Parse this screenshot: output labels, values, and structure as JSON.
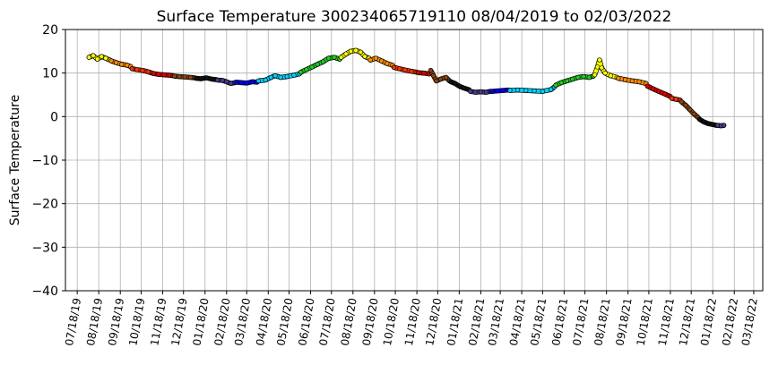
{
  "chart_data": {
    "type": "scatter",
    "title": "Surface Temperature 300234065719110  08/04/2019 to 02/03/2022",
    "xlabel": "",
    "ylabel": "Surface Temperature",
    "ylim": [
      -40,
      20
    ],
    "xlim": [
      "2019-07-01",
      "2022-03-31"
    ],
    "yticks": [
      20,
      10,
      0,
      -10,
      -20,
      -30,
      -40
    ],
    "ytick_labels": [
      "20",
      "10",
      "0",
      "−10",
      "−20",
      "−30",
      "−40"
    ],
    "xtick_labels": [
      "07/18/19",
      "08/18/19",
      "09/18/19",
      "10/18/19",
      "11/18/19",
      "12/18/19",
      "01/18/20",
      "02/18/20",
      "03/18/20",
      "04/18/20",
      "05/18/20",
      "06/18/20",
      "07/18/20",
      "08/18/20",
      "09/18/20",
      "10/18/20",
      "11/18/20",
      "12/18/20",
      "01/18/21",
      "02/18/21",
      "03/18/21",
      "04/18/21",
      "05/18/21",
      "06/18/21",
      "07/18/21",
      "08/18/21",
      "09/18/21",
      "10/18/21",
      "11/18/21",
      "12/18/21",
      "01/18/22",
      "02/18/22",
      "03/18/22"
    ],
    "grid": true,
    "series": [
      {
        "color": "#ffff00",
        "points": [
          [
            "2019-08-04",
            13.6
          ],
          [
            "2019-08-10",
            14.0
          ],
          [
            "2019-08-16",
            13.2
          ],
          [
            "2019-08-22",
            13.8
          ],
          [
            "2019-08-28",
            13.4
          ],
          [
            "2019-09-03",
            13.0
          ]
        ]
      },
      {
        "color": "#ff8c00",
        "points": [
          [
            "2019-09-05",
            12.8
          ],
          [
            "2019-09-12",
            12.4
          ],
          [
            "2019-09-20",
            12.0
          ],
          [
            "2019-09-28",
            11.8
          ],
          [
            "2019-10-03",
            11.5
          ]
        ]
      },
      {
        "color": "#ff3300",
        "points": [
          [
            "2019-10-05",
            11.0
          ],
          [
            "2019-10-12",
            10.8
          ],
          [
            "2019-10-20",
            10.6
          ],
          [
            "2019-10-28",
            10.3
          ],
          [
            "2019-11-03",
            10.0
          ]
        ]
      },
      {
        "color": "#dd0000",
        "points": [
          [
            "2019-11-05",
            9.9
          ],
          [
            "2019-11-12",
            9.7
          ],
          [
            "2019-11-20",
            9.6
          ],
          [
            "2019-11-28",
            9.5
          ],
          [
            "2019-12-03",
            9.4
          ]
        ]
      },
      {
        "color": "#8b4513",
        "points": [
          [
            "2019-12-05",
            9.3
          ],
          [
            "2019-12-12",
            9.2
          ],
          [
            "2019-12-20",
            9.1
          ],
          [
            "2019-12-28",
            9.0
          ],
          [
            "2020-01-03",
            8.9
          ]
        ]
      },
      {
        "color": "#111111",
        "points": [
          [
            "2020-01-05",
            8.8
          ],
          [
            "2020-01-12",
            8.7
          ],
          [
            "2020-01-20",
            8.9
          ],
          [
            "2020-01-28",
            8.6
          ],
          [
            "2020-02-03",
            8.5
          ]
        ]
      },
      {
        "color": "#483d8b",
        "points": [
          [
            "2020-02-05",
            8.4
          ],
          [
            "2020-02-12",
            8.3
          ],
          [
            "2020-02-18",
            8.0
          ],
          [
            "2020-02-24",
            7.6
          ],
          [
            "2020-03-01",
            7.8
          ]
        ]
      },
      {
        "color": "#0000ff",
        "points": [
          [
            "2020-03-03",
            7.9
          ],
          [
            "2020-03-10",
            7.8
          ],
          [
            "2020-03-18",
            7.7
          ],
          [
            "2020-03-26",
            8.0
          ],
          [
            "2020-04-02",
            7.9
          ]
        ]
      },
      {
        "color": "#00d0ff",
        "points": [
          [
            "2020-04-04",
            8.2
          ],
          [
            "2020-04-14",
            8.4
          ],
          [
            "2020-04-22",
            9.0
          ],
          [
            "2020-04-28",
            9.4
          ],
          [
            "2020-05-06",
            9.0
          ],
          [
            "2020-05-15",
            9.2
          ],
          [
            "2020-05-25",
            9.5
          ],
          [
            "2020-06-02",
            9.8
          ]
        ]
      },
      {
        "color": "#22cc22",
        "points": [
          [
            "2020-06-04",
            10.2
          ],
          [
            "2020-06-12",
            10.8
          ],
          [
            "2020-06-20",
            11.4
          ],
          [
            "2020-06-28",
            12.0
          ],
          [
            "2020-07-06",
            12.6
          ],
          [
            "2020-07-14",
            13.4
          ],
          [
            "2020-07-22",
            13.6
          ],
          [
            "2020-07-30",
            13.2
          ]
        ]
      },
      {
        "color": "#ffff00",
        "points": [
          [
            "2020-08-01",
            13.6
          ],
          [
            "2020-08-08",
            14.4
          ],
          [
            "2020-08-15",
            15.0
          ],
          [
            "2020-08-22",
            15.2
          ],
          [
            "2020-08-29",
            14.8
          ],
          [
            "2020-09-04",
            13.8
          ],
          [
            "2020-09-10",
            13.4
          ]
        ]
      },
      {
        "color": "#ff8c00",
        "points": [
          [
            "2020-09-12",
            13.0
          ],
          [
            "2020-09-20",
            13.4
          ],
          [
            "2020-09-28",
            12.8
          ],
          [
            "2020-10-06",
            12.2
          ],
          [
            "2020-10-14",
            11.8
          ]
        ]
      },
      {
        "color": "#ff3300",
        "points": [
          [
            "2020-10-16",
            11.3
          ],
          [
            "2020-10-24",
            11.0
          ],
          [
            "2020-11-01",
            10.7
          ],
          [
            "2020-11-10",
            10.4
          ],
          [
            "2020-11-18",
            10.2
          ]
        ]
      },
      {
        "color": "#dd0000",
        "points": [
          [
            "2020-11-20",
            10.1
          ],
          [
            "2020-11-28",
            10.0
          ],
          [
            "2020-12-06",
            9.8
          ]
        ]
      },
      {
        "color": "#8b4513",
        "points": [
          [
            "2020-12-08",
            10.6
          ],
          [
            "2020-12-12",
            9.4
          ],
          [
            "2020-12-16",
            8.2
          ],
          [
            "2020-12-22",
            8.6
          ],
          [
            "2020-12-30",
            9.0
          ],
          [
            "2021-01-04",
            8.2
          ]
        ]
      },
      {
        "color": "#111111",
        "points": [
          [
            "2021-01-06",
            8.0
          ],
          [
            "2021-01-12",
            7.6
          ],
          [
            "2021-01-18",
            7.0
          ],
          [
            "2021-01-24",
            6.6
          ],
          [
            "2021-02-01",
            6.2
          ]
        ]
      },
      {
        "color": "#483d8b",
        "points": [
          [
            "2021-02-03",
            5.8
          ],
          [
            "2021-02-10",
            5.6
          ],
          [
            "2021-02-18",
            5.7
          ],
          [
            "2021-02-26",
            5.6
          ],
          [
            "2021-03-04",
            5.8
          ]
        ]
      },
      {
        "color": "#0000ff",
        "points": [
          [
            "2021-03-06",
            5.8
          ],
          [
            "2021-03-14",
            5.9
          ],
          [
            "2021-03-22",
            6.0
          ],
          [
            "2021-03-30",
            6.1
          ]
        ]
      },
      {
        "color": "#00d0ff",
        "points": [
          [
            "2021-04-01",
            6.0
          ],
          [
            "2021-04-12",
            6.1
          ],
          [
            "2021-04-24",
            6.0
          ],
          [
            "2021-05-06",
            5.9
          ],
          [
            "2021-05-18",
            5.8
          ],
          [
            "2021-05-30",
            6.2
          ],
          [
            "2021-06-04",
            6.8
          ]
        ]
      },
      {
        "color": "#22cc22",
        "points": [
          [
            "2021-06-06",
            7.2
          ],
          [
            "2021-06-14",
            7.8
          ],
          [
            "2021-06-22",
            8.2
          ],
          [
            "2021-06-30",
            8.6
          ],
          [
            "2021-07-08",
            9.0
          ],
          [
            "2021-07-16",
            9.2
          ],
          [
            "2021-07-24",
            9.0
          ],
          [
            "2021-07-30",
            9.3
          ]
        ]
      },
      {
        "color": "#ffff00",
        "points": [
          [
            "2021-08-01",
            9.6
          ],
          [
            "2021-08-05",
            11.4
          ],
          [
            "2021-08-08",
            13.0
          ],
          [
            "2021-08-11",
            11.2
          ],
          [
            "2021-08-16",
            10.0
          ],
          [
            "2021-08-24",
            9.4
          ],
          [
            "2021-09-02",
            9.0
          ]
        ]
      },
      {
        "color": "#ff8c00",
        "points": [
          [
            "2021-09-04",
            8.8
          ],
          [
            "2021-09-14",
            8.5
          ],
          [
            "2021-09-24",
            8.2
          ],
          [
            "2021-10-04",
            8.0
          ],
          [
            "2021-10-14",
            7.6
          ]
        ]
      },
      {
        "color": "#dd0000",
        "points": [
          [
            "2021-10-16",
            7.0
          ],
          [
            "2021-10-24",
            6.4
          ],
          [
            "2021-11-01",
            5.8
          ],
          [
            "2021-11-10",
            5.2
          ],
          [
            "2021-11-18",
            4.6
          ]
        ]
      },
      {
        "color": "#ff3300",
        "points": [
          [
            "2021-11-20",
            4.2
          ],
          [
            "2021-11-26",
            4.0
          ],
          [
            "2021-12-02",
            3.8
          ]
        ]
      },
      {
        "color": "#8b4513",
        "points": [
          [
            "2021-12-04",
            3.4
          ],
          [
            "2021-12-10",
            2.6
          ],
          [
            "2021-12-16",
            1.6
          ],
          [
            "2021-12-22",
            0.6
          ],
          [
            "2021-12-28",
            -0.2
          ]
        ]
      },
      {
        "color": "#111111",
        "points": [
          [
            "2021-12-30",
            -0.6
          ],
          [
            "2022-01-05",
            -1.2
          ],
          [
            "2022-01-11",
            -1.6
          ],
          [
            "2022-01-17",
            -1.8
          ],
          [
            "2022-01-23",
            -2.0
          ]
        ]
      },
      {
        "color": "#483d8b",
        "points": [
          [
            "2022-01-25",
            -2.0
          ],
          [
            "2022-01-30",
            -2.1
          ],
          [
            "2022-02-03",
            -2.0
          ]
        ]
      }
    ]
  }
}
